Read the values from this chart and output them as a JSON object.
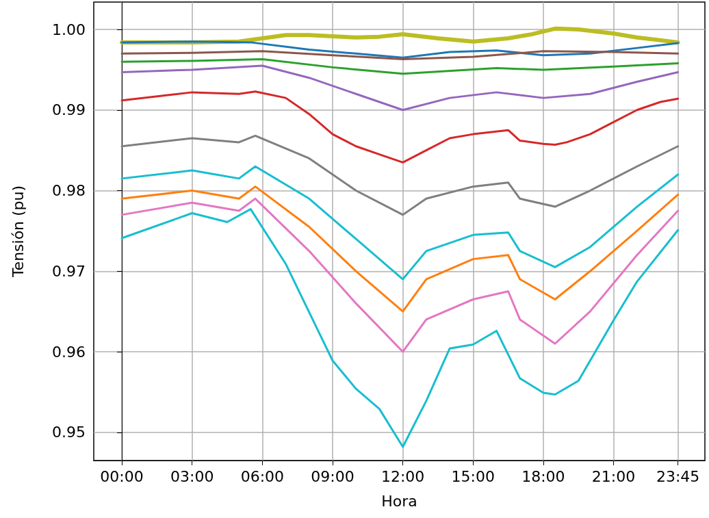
{
  "chart_data": {
    "type": "line",
    "xlabel": "Hora",
    "ylabel": "Tensión (pu)",
    "grid": true,
    "marker": "none",
    "line_style": "solid",
    "xlim": [
      -1.2,
      24.9
    ],
    "ylim": [
      0.9465,
      1.0034
    ],
    "xticks": [
      {
        "value": 0,
        "label": "00:00"
      },
      {
        "value": 3,
        "label": "03:00"
      },
      {
        "value": 6,
        "label": "06:00"
      },
      {
        "value": 9,
        "label": "09:00"
      },
      {
        "value": 12,
        "label": "12:00"
      },
      {
        "value": 15,
        "label": "15:00"
      },
      {
        "value": 18,
        "label": "18:00"
      },
      {
        "value": 21,
        "label": "21:00"
      },
      {
        "value": 23.75,
        "label": "23:45"
      }
    ],
    "yticks": [
      0.95,
      0.96,
      0.97,
      0.98,
      0.99,
      {
        "value": 1,
        "label": "1.00"
      }
    ],
    "series": [
      {
        "color": "#bcbd22",
        "x": [
          0,
          3,
          5,
          7,
          8,
          10,
          11,
          12,
          13.5,
          15,
          16.5,
          17.5,
          18.5,
          19.5,
          21,
          22,
          23.75
        ],
        "values": [
          0.9984,
          0.9984,
          0.9985,
          0.9993,
          0.9993,
          0.999,
          0.9991,
          0.9994,
          0.9989,
          0.9985,
          0.9989,
          0.9994,
          1.0001,
          1,
          0.9995,
          0.999,
          0.9984
        ]
      },
      {
        "color": "#1f77b4",
        "x": [
          0,
          3,
          5.5,
          8,
          10,
          12,
          14,
          16,
          18,
          20,
          22,
          23.75
        ],
        "values": [
          0.9984,
          0.9985,
          0.9984,
          0.9975,
          0.997,
          0.9965,
          0.9972,
          0.9974,
          0.9968,
          0.997,
          0.9977,
          0.9983
        ]
      },
      {
        "color": "#8c564b",
        "x": [
          0,
          3,
          6,
          9,
          12,
          15,
          18,
          21,
          23.75
        ],
        "values": [
          0.997,
          0.9971,
          0.9973,
          0.9968,
          0.9963,
          0.9966,
          0.9973,
          0.9972,
          0.997
        ]
      },
      {
        "color": "#2ca02c",
        "x": [
          0,
          3,
          6,
          9,
          12,
          16,
          18,
          21,
          23.75
        ],
        "values": [
          0.996,
          0.9961,
          0.9963,
          0.9953,
          0.9945,
          0.9952,
          0.995,
          0.9954,
          0.9958
        ]
      },
      {
        "color": "#9467bd",
        "x": [
          0,
          3,
          6,
          8,
          10,
          12,
          14,
          16,
          18,
          20,
          22,
          23.75
        ],
        "values": [
          0.9947,
          0.995,
          0.9955,
          0.994,
          0.992,
          0.99,
          0.9915,
          0.9922,
          0.9915,
          0.992,
          0.9935,
          0.9947
        ]
      },
      {
        "color": "#d62728",
        "x": [
          0,
          3,
          5,
          5.7,
          7,
          8,
          9,
          10,
          11,
          12,
          13,
          14,
          15,
          16.5,
          17,
          18,
          18.5,
          19,
          20,
          21,
          22,
          23,
          23.75
        ],
        "values": [
          0.9912,
          0.9922,
          0.992,
          0.9923,
          0.9915,
          0.9895,
          0.987,
          0.9855,
          0.9845,
          0.9835,
          0.985,
          0.9865,
          0.987,
          0.9875,
          0.9862,
          0.9858,
          0.9857,
          0.986,
          0.987,
          0.9885,
          0.99,
          0.991,
          0.9914
        ]
      },
      {
        "color": "#7f7f7f",
        "x": [
          0,
          3,
          5,
          5.7,
          8,
          10,
          12,
          13,
          15,
          16.5,
          17,
          18.5,
          20,
          22,
          23.75
        ],
        "values": [
          0.9855,
          0.9865,
          0.986,
          0.9868,
          0.984,
          0.98,
          0.977,
          0.979,
          0.9805,
          0.981,
          0.979,
          0.978,
          0.98,
          0.983,
          0.9855
        ]
      },
      {
        "color": "#17becf",
        "x": [
          0,
          3,
          5,
          5.7,
          8,
          10,
          12,
          13,
          15,
          16.5,
          17,
          18.5,
          20,
          22,
          23.75
        ],
        "values": [
          0.9815,
          0.9825,
          0.9815,
          0.983,
          0.979,
          0.974,
          0.969,
          0.9725,
          0.9745,
          0.9748,
          0.9725,
          0.9705,
          0.973,
          0.978,
          0.982
        ]
      },
      {
        "color": "#ff7f0e",
        "x": [
          0,
          3,
          5,
          5.7,
          8,
          10,
          12,
          13,
          15,
          16.5,
          17,
          18.5,
          20,
          22,
          23.75
        ],
        "values": [
          0.979,
          0.98,
          0.979,
          0.9805,
          0.9755,
          0.97,
          0.965,
          0.969,
          0.9715,
          0.972,
          0.969,
          0.9665,
          0.97,
          0.975,
          0.9795
        ]
      },
      {
        "color": "#e377c2",
        "x": [
          0,
          3,
          5,
          5.7,
          8,
          10,
          12,
          13,
          15,
          16.5,
          17,
          18.5,
          20,
          22,
          23.75
        ],
        "values": [
          0.977,
          0.9785,
          0.9775,
          0.979,
          0.9725,
          0.966,
          0.96,
          0.964,
          0.9665,
          0.9675,
          0.964,
          0.961,
          0.965,
          0.972,
          0.9775
        ]
      },
      {
        "color": "#17becf",
        "x": [
          0,
          3,
          4.5,
          5.5,
          7,
          8,
          9,
          10,
          11,
          12,
          13,
          14,
          15,
          16,
          17,
          18,
          18.5,
          19.5,
          21,
          22,
          23.75
        ],
        "values": [
          0.9741,
          0.9772,
          0.9761,
          0.9777,
          0.9709,
          0.9649,
          0.9589,
          0.9554,
          0.9529,
          0.9482,
          0.9539,
          0.9604,
          0.9609,
          0.9626,
          0.9567,
          0.9549,
          0.9547,
          0.9564,
          0.9639,
          0.9687,
          0.9751
        ]
      }
    ]
  }
}
